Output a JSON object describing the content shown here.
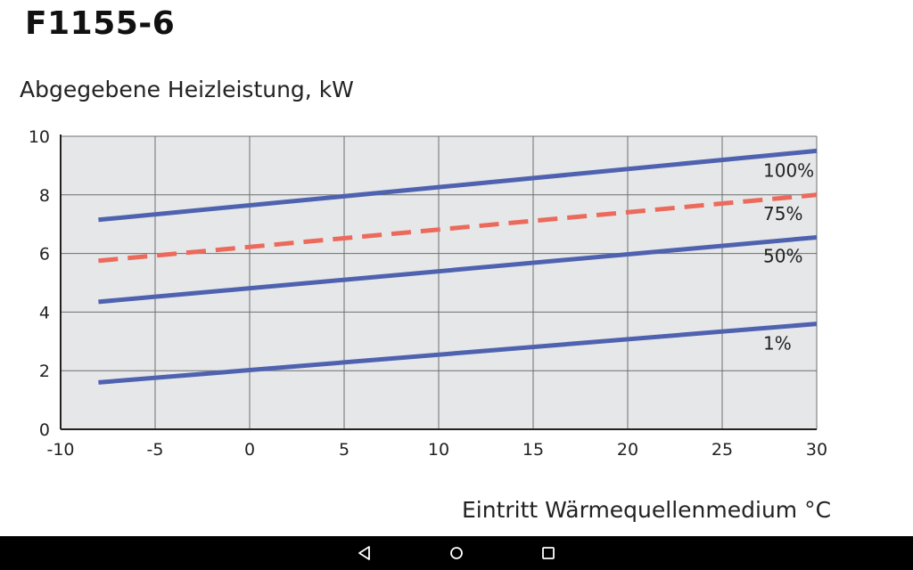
{
  "chart_data": {
    "type": "line",
    "title": "F1155-6",
    "ylabel": "Abgegebene Heizleistung, kW",
    "xlabel": "Eintritt Wärmequellenmedium °C",
    "xlim": [
      -10,
      30
    ],
    "ylim": [
      0,
      10
    ],
    "x_ticks": [
      -10,
      -5,
      0,
      5,
      10,
      15,
      20,
      25,
      30
    ],
    "y_ticks": [
      0,
      2,
      4,
      6,
      8,
      10
    ],
    "grid": true,
    "background": "#e6e7e8",
    "series": [
      {
        "name": "100%",
        "x": [
          -8,
          30
        ],
        "y": [
          7.15,
          9.5
        ],
        "color": "#4f62b0",
        "style": "solid"
      },
      {
        "name": "75%",
        "x": [
          -8,
          30
        ],
        "y": [
          5.75,
          8.0
        ],
        "color": "#ec6a5c",
        "style": "dashed"
      },
      {
        "name": "50%",
        "x": [
          -8,
          30
        ],
        "y": [
          4.35,
          6.55
        ],
        "color": "#4f62b0",
        "style": "solid"
      },
      {
        "name": "1%",
        "x": [
          -8,
          30
        ],
        "y": [
          1.6,
          3.6
        ],
        "color": "#4f62b0",
        "style": "solid"
      }
    ]
  },
  "navbar": {
    "back_icon": "back-triangle-icon",
    "home_icon": "home-circle-icon",
    "recents_icon": "recents-square-icon"
  }
}
